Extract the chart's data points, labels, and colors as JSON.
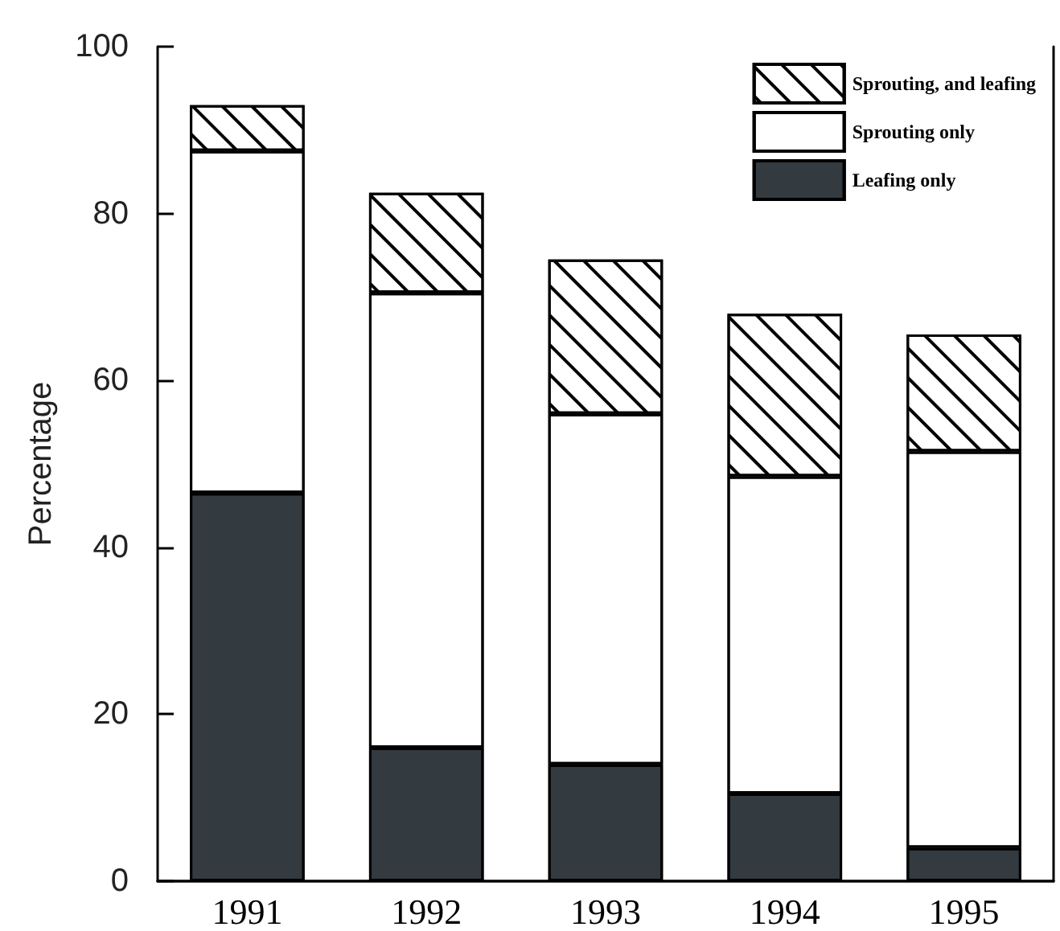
{
  "chart_data": {
    "type": "bar",
    "stacked": true,
    "ylabel": "Percentage",
    "categories": [
      "1991",
      "1992",
      "1993",
      "1994",
      "1995"
    ],
    "series": [
      {
        "name": "Leafing only",
        "color": "#333a40",
        "values": [
          46.5,
          16,
          14,
          10.5,
          4
        ]
      },
      {
        "name": "Sprouting only",
        "color": "#ffffff",
        "values": [
          41,
          54.5,
          42,
          38,
          47.5
        ]
      },
      {
        "name": "Sprouting, and leafing",
        "color": "#ffffff",
        "values": [
          5.5,
          12,
          18.5,
          19.5,
          14
        ]
      }
    ],
    "ylim": [
      0,
      100
    ],
    "yticks": [
      0,
      20,
      40,
      60,
      80,
      100
    ],
    "grid": false,
    "legend": "top right"
  }
}
